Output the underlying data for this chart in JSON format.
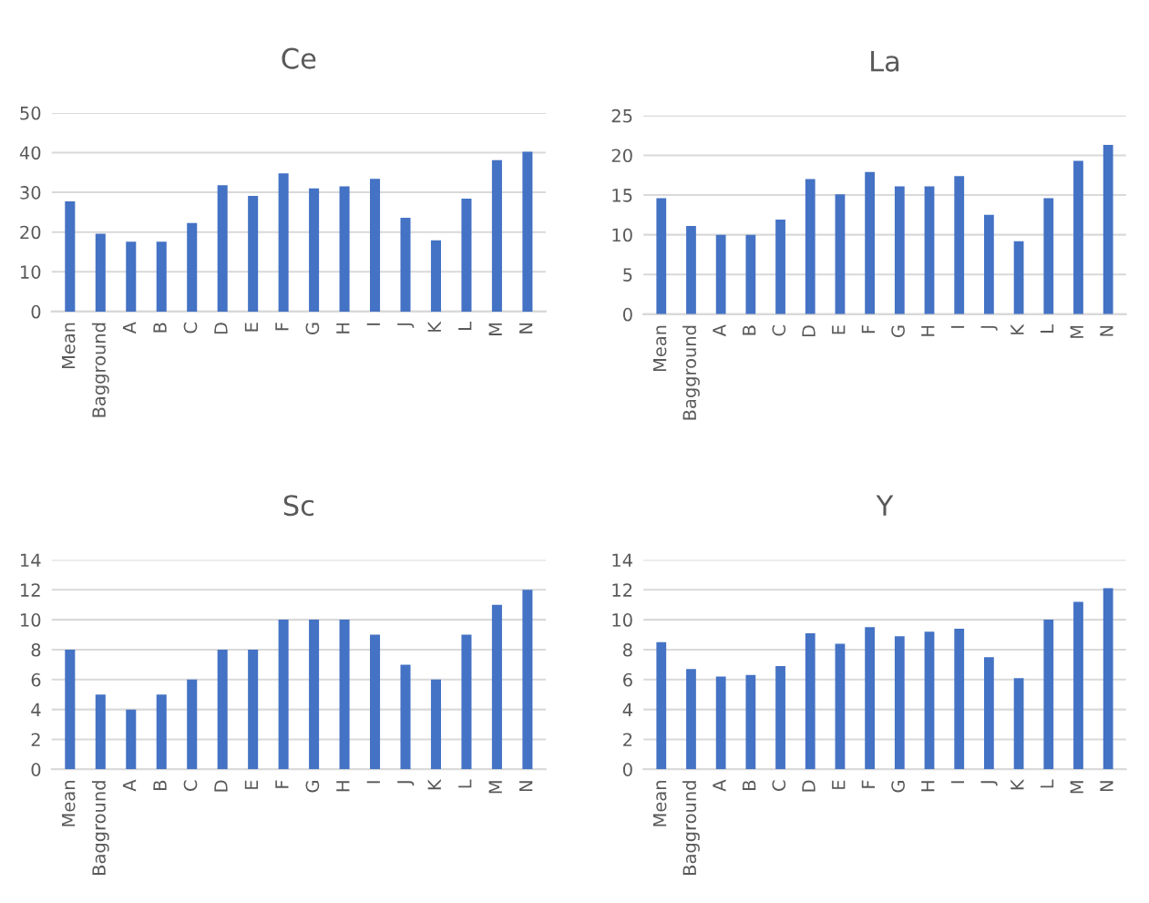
{
  "chart_data": [
    {
      "type": "bar",
      "title": "Ce",
      "categories": [
        "Mean",
        "Bagground",
        "A",
        "B",
        "C",
        "D",
        "E",
        "F",
        "G",
        "H",
        "I",
        "J",
        "K",
        "L",
        "M",
        "N"
      ],
      "color": "#4472c4",
      "values": [
        27.7,
        19.6,
        17.6,
        17.6,
        22.3,
        31.8,
        29.1,
        34.8,
        31.0,
        31.5,
        33.4,
        23.6,
        17.9,
        28.4,
        38.1,
        40.2
      ],
      "ylim": [
        0,
        50
      ],
      "yticks": [
        0,
        10,
        20,
        30,
        40,
        50
      ],
      "grid": "y"
    },
    {
      "type": "bar",
      "title": "La",
      "categories": [
        "Mean",
        "Bagground",
        "A",
        "B",
        "C",
        "D",
        "E",
        "F",
        "G",
        "H",
        "I",
        "J",
        "K",
        "L",
        "M",
        "N"
      ],
      "color": "#4472c4",
      "values": [
        14.6,
        11.1,
        10.0,
        10.0,
        11.9,
        17.0,
        15.1,
        17.9,
        16.1,
        16.1,
        17.4,
        12.5,
        9.2,
        14.6,
        19.3,
        21.3
      ],
      "ylim": [
        0,
        25
      ],
      "yticks": [
        0,
        5,
        10,
        15,
        20,
        25
      ],
      "grid": "y"
    },
    {
      "type": "bar",
      "title": "Sc",
      "categories": [
        "Mean",
        "Bagground",
        "A",
        "B",
        "C",
        "D",
        "E",
        "F",
        "G",
        "H",
        "I",
        "J",
        "K",
        "L",
        "M",
        "N"
      ],
      "color": "#4472c4",
      "values": [
        8,
        5,
        4,
        5,
        6,
        8,
        8,
        10,
        10,
        10,
        9,
        7,
        6,
        9,
        11,
        12
      ],
      "ylim": [
        0,
        14
      ],
      "yticks": [
        0,
        2,
        4,
        6,
        8,
        10,
        12,
        14
      ],
      "grid": "y"
    },
    {
      "type": "bar",
      "title": "Y",
      "categories": [
        "Mean",
        "Bagground",
        "A",
        "B",
        "C",
        "D",
        "E",
        "F",
        "G",
        "H",
        "I",
        "J",
        "K",
        "L",
        "M",
        "N"
      ],
      "color": "#4472c4",
      "values": [
        8.5,
        6.7,
        6.2,
        6.3,
        6.9,
        9.1,
        8.4,
        9.5,
        8.9,
        9.2,
        9.4,
        7.5,
        6.1,
        10.0,
        11.2,
        12.1
      ],
      "ylim": [
        0,
        14
      ],
      "yticks": [
        0,
        2,
        4,
        6,
        8,
        10,
        12,
        14
      ],
      "grid": "y"
    }
  ]
}
